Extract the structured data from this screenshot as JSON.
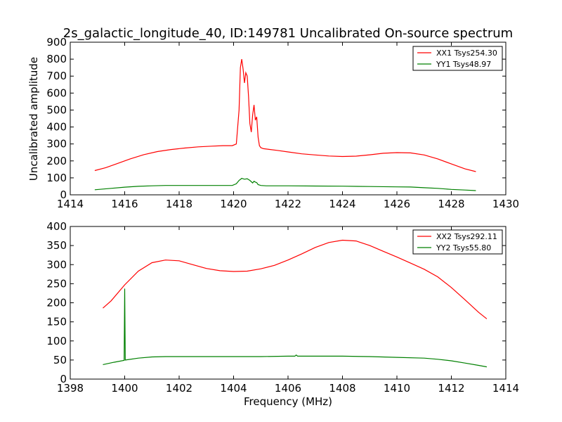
{
  "figure": {
    "title": "2s_galactic_longitude_40, ID:149781 Uncalibrated On-source spectrum",
    "ylabel_top": "Uncalibrated amplitude",
    "xlabel_bottom": "Frequency (MHz)"
  },
  "chart_data": [
    {
      "type": "line",
      "title": "2s_galactic_longitude_40, ID:149781 Uncalibrated On-source spectrum",
      "xlabel": "",
      "ylabel": "Uncalibrated amplitude",
      "xlim": [
        1414,
        1430
      ],
      "ylim": [
        0,
        900
      ],
      "xticks": [
        1414,
        1416,
        1418,
        1420,
        1422,
        1424,
        1426,
        1428,
        1430
      ],
      "yticks": [
        0,
        100,
        200,
        300,
        400,
        500,
        600,
        700,
        800,
        900
      ],
      "legend_position": "top-right",
      "series": [
        {
          "name": "XX1 Tsys254.30",
          "color": "#ff0000",
          "x": [
            1414.9,
            1415.3,
            1415.7,
            1416.2,
            1416.7,
            1417.2,
            1417.7,
            1418.2,
            1418.7,
            1419.2,
            1419.6,
            1419.95,
            1420.1,
            1420.2,
            1420.25,
            1420.3,
            1420.35,
            1420.4,
            1420.45,
            1420.5,
            1420.55,
            1420.6,
            1420.65,
            1420.7,
            1420.75,
            1420.8,
            1420.85,
            1420.9,
            1420.95,
            1421.0,
            1421.1,
            1421.3,
            1421.6,
            1422.0,
            1422.5,
            1423.0,
            1423.5,
            1424.0,
            1424.5,
            1425.0,
            1425.5,
            1426.0,
            1426.5,
            1427.0,
            1427.5,
            1428.0,
            1428.5,
            1428.9
          ],
          "values": [
            143,
            160,
            183,
            212,
            237,
            255,
            267,
            276,
            283,
            287,
            290,
            290,
            300,
            500,
            750,
            800,
            740,
            660,
            720,
            700,
            580,
            420,
            370,
            470,
            530,
            440,
            460,
            340,
            290,
            278,
            272,
            268,
            262,
            253,
            242,
            235,
            229,
            226,
            228,
            236,
            245,
            249,
            247,
            235,
            212,
            182,
            153,
            137
          ]
        },
        {
          "name": "YY1 Tsys48.97",
          "color": "#008000",
          "x": [
            1414.9,
            1415.5,
            1416.0,
            1416.5,
            1417.0,
            1417.5,
            1418.0,
            1418.5,
            1419.0,
            1419.5,
            1419.95,
            1420.1,
            1420.2,
            1420.3,
            1420.4,
            1420.5,
            1420.6,
            1420.7,
            1420.75,
            1420.8,
            1420.85,
            1420.9,
            1421.0,
            1421.2,
            1421.6,
            1422.0,
            1423.0,
            1424.0,
            1425.0,
            1426.0,
            1426.5,
            1427.0,
            1427.5,
            1428.0,
            1428.5,
            1428.9
          ],
          "values": [
            30,
            38,
            45,
            50,
            53,
            55,
            55,
            55,
            55,
            55,
            55,
            65,
            85,
            97,
            92,
            95,
            85,
            70,
            80,
            75,
            72,
            60,
            55,
            53,
            53,
            53,
            52,
            51,
            49,
            47,
            46,
            42,
            38,
            32,
            28,
            25
          ]
        }
      ]
    },
    {
      "type": "line",
      "title": "",
      "xlabel": "Frequency (MHz)",
      "ylabel": "",
      "xlim": [
        1398,
        1414
      ],
      "ylim": [
        0,
        400
      ],
      "xticks": [
        1398,
        1400,
        1402,
        1404,
        1406,
        1408,
        1410,
        1412,
        1414
      ],
      "yticks": [
        0,
        50,
        100,
        150,
        200,
        250,
        300,
        350,
        400
      ],
      "legend_position": "top-right",
      "series": [
        {
          "name": "XX2 Tsys292.11",
          "color": "#ff0000",
          "x": [
            1399.2,
            1399.5,
            1400.0,
            1400.5,
            1401.0,
            1401.5,
            1402.0,
            1402.5,
            1403.0,
            1403.5,
            1404.0,
            1404.5,
            1405.0,
            1405.5,
            1406.0,
            1406.5,
            1407.0,
            1407.5,
            1408.0,
            1408.5,
            1409.0,
            1409.5,
            1410.0,
            1410.5,
            1411.0,
            1411.5,
            1412.0,
            1412.5,
            1413.0,
            1413.3
          ],
          "values": [
            186,
            205,
            247,
            283,
            305,
            312,
            310,
            300,
            290,
            284,
            282,
            283,
            289,
            298,
            312,
            328,
            345,
            358,
            364,
            362,
            350,
            335,
            320,
            304,
            288,
            268,
            240,
            208,
            175,
            158
          ]
        },
        {
          "name": "YY2 Tsys55.80",
          "color": "#008000",
          "x": [
            1399.2,
            1399.6,
            1399.98,
            1400.0,
            1400.02,
            1400.5,
            1401.0,
            1401.5,
            1402.0,
            1403.0,
            1404.0,
            1405.0,
            1406.0,
            1406.25,
            1406.3,
            1406.35,
            1407.0,
            1408.0,
            1409.0,
            1410.0,
            1411.0,
            1411.5,
            1412.0,
            1412.5,
            1413.0,
            1413.3
          ],
          "values": [
            38,
            44,
            49,
            237,
            50,
            55,
            58,
            59,
            59,
            59,
            59,
            59,
            60,
            60,
            63,
            60,
            60,
            60,
            59,
            57,
            55,
            52,
            48,
            42,
            36,
            32
          ]
        }
      ]
    }
  ]
}
